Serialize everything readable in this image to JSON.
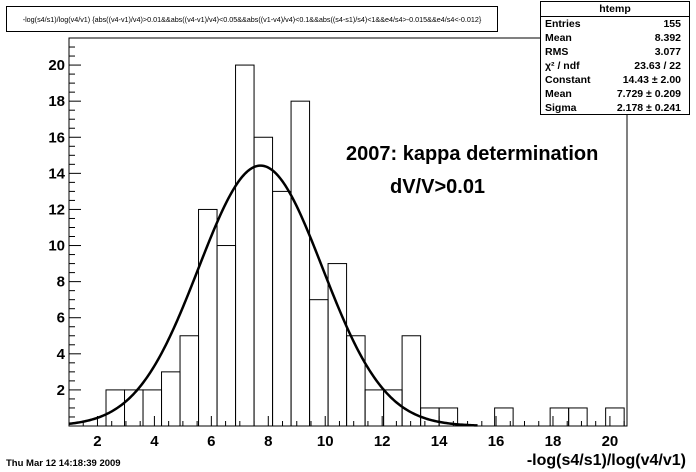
{
  "cut_title": "-log(s4/s1)/log(v4/v1) {abs((v4-v1)/v4)>0.01&&abs((v4-v1)/v4)<0.05&&abs((v1-v4)/v4)<0.1&&abs((s4-s1)/s4)<1&&e4/s4>-0.015&&e4/s4<-0.012}",
  "stats_box": {
    "title": "htemp",
    "rows": [
      {
        "label": "Entries",
        "value": "155"
      },
      {
        "label": "Mean",
        "value": "8.392"
      },
      {
        "label": "RMS",
        "value": "3.077"
      },
      {
        "label": "χ² / ndf",
        "value": "23.63 / 22"
      },
      {
        "label": "Constant",
        "value": "14.43 ± 2.00"
      },
      {
        "label": "Mean",
        "value": "7.729 ± 0.209"
      },
      {
        "label": "Sigma",
        "value": "2.178 ± 0.241"
      }
    ]
  },
  "annotations": {
    "line1": "2007: kappa determination",
    "line2": "dV/V>0.01"
  },
  "date_stamp": "Thu Mar 12 14:18:39 2009",
  "chart_data": {
    "type": "bar",
    "xlabel": "-log(s4/s1)/log(v4/v1)",
    "ylabel": "",
    "xlim": [
      1.0,
      20.6
    ],
    "ylim": [
      0,
      21.5
    ],
    "bin_width": 0.65,
    "bins": [
      {
        "x": 1.0,
        "count": 0
      },
      {
        "x": 1.65,
        "count": 0
      },
      {
        "x": 2.3,
        "count": 2
      },
      {
        "x": 2.95,
        "count": 2
      },
      {
        "x": 3.6,
        "count": 2
      },
      {
        "x": 4.25,
        "count": 3
      },
      {
        "x": 4.9,
        "count": 5
      },
      {
        "x": 5.55,
        "count": 12
      },
      {
        "x": 6.2,
        "count": 10
      },
      {
        "x": 6.85,
        "count": 20
      },
      {
        "x": 7.5,
        "count": 16
      },
      {
        "x": 8.15,
        "count": 13
      },
      {
        "x": 8.8,
        "count": 18
      },
      {
        "x": 9.45,
        "count": 7
      },
      {
        "x": 10.1,
        "count": 9
      },
      {
        "x": 10.75,
        "count": 5
      },
      {
        "x": 11.4,
        "count": 2
      },
      {
        "x": 12.05,
        "count": 2
      },
      {
        "x": 12.7,
        "count": 5
      },
      {
        "x": 13.35,
        "count": 1
      },
      {
        "x": 14.0,
        "count": 1
      },
      {
        "x": 14.65,
        "count": 0
      },
      {
        "x": 15.3,
        "count": 0
      },
      {
        "x": 15.95,
        "count": 1
      },
      {
        "x": 16.6,
        "count": 0
      },
      {
        "x": 17.25,
        "count": 0
      },
      {
        "x": 17.9,
        "count": 1
      },
      {
        "x": 18.55,
        "count": 1
      },
      {
        "x": 19.2,
        "count": 0
      },
      {
        "x": 19.85,
        "count": 1
      }
    ],
    "fit": {
      "function": "gaus",
      "constant": 14.43,
      "mean": 7.729,
      "sigma": 2.178
    },
    "x_ticks": [
      2,
      4,
      6,
      8,
      10,
      12,
      14,
      16,
      18,
      20
    ],
    "y_ticks": [
      2,
      4,
      6,
      8,
      10,
      12,
      14,
      16,
      18,
      20
    ],
    "grid": false,
    "colors": {
      "histogram": "#000000",
      "fit": "#000000"
    }
  }
}
